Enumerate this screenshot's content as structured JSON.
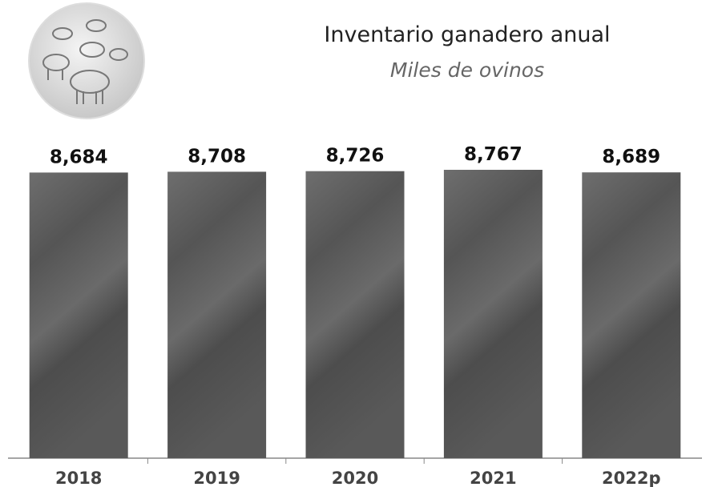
{
  "chart_data": {
    "type": "bar",
    "title": "Inventario ganadero anual",
    "subtitle": "Miles de ovinos",
    "categories": [
      "2018",
      "2019",
      "2020",
      "2021",
      "2022p"
    ],
    "values": [
      8684,
      8708,
      8726,
      8767,
      8689
    ],
    "value_labels": [
      "8,684",
      "8,708",
      "8,726",
      "8,767",
      "8,689"
    ],
    "color": "#5e5e5e"
  }
}
